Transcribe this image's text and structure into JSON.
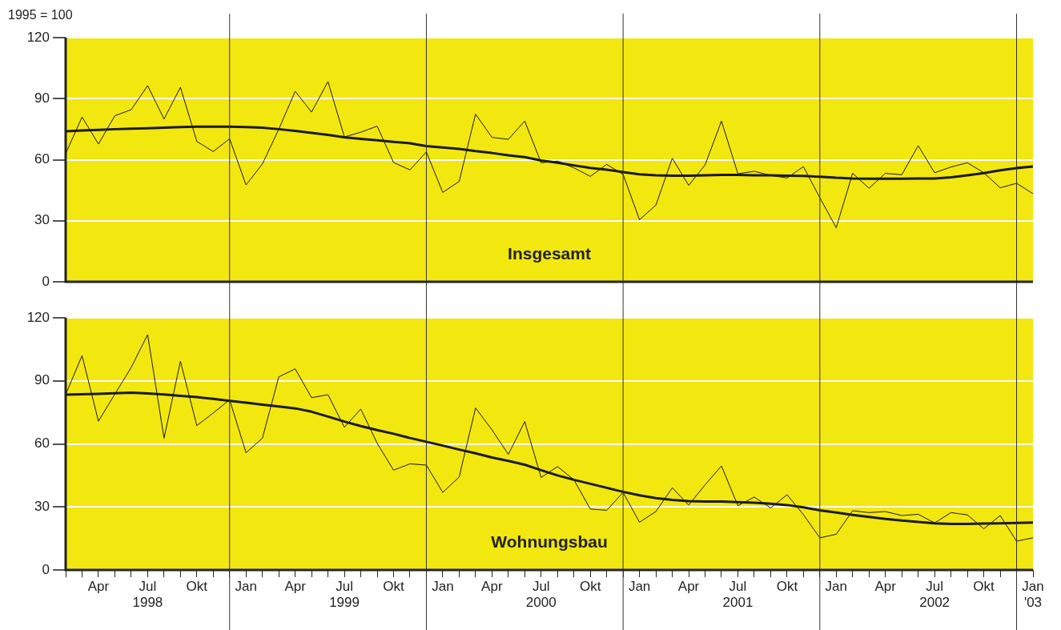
{
  "chart_data": [
    {
      "type": "line",
      "ylabel": "1995 = 100",
      "annotations": [
        "Insgesamt"
      ],
      "marker": "none",
      "grid": "y",
      "tick_labels": "y",
      "x": [
        "1998-02",
        "1998-03",
        "1998-04",
        "1998-05",
        "1998-06",
        "1998-07",
        "1998-08",
        "1998-09",
        "1998-10",
        "1998-11",
        "1998-12",
        "1999-01",
        "1999-02",
        "1999-03",
        "1999-04",
        "1999-05",
        "1999-06",
        "1999-07",
        "1999-08",
        "1999-09",
        "1999-10",
        "1999-11",
        "1999-12",
        "2000-01",
        "2000-02",
        "2000-03",
        "2000-04",
        "2000-05",
        "2000-06",
        "2000-07",
        "2000-08",
        "2000-09",
        "2000-10",
        "2000-11",
        "2000-12",
        "2001-01",
        "2001-02",
        "2001-03",
        "2001-04",
        "2001-05",
        "2001-06",
        "2001-07",
        "2001-08",
        "2001-09",
        "2001-10",
        "2001-11",
        "2001-12",
        "2002-01",
        "2002-02",
        "2002-03",
        "2002-04",
        "2002-05",
        "2002-06",
        "2002-07",
        "2002-08",
        "2002-09",
        "2002-10",
        "2002-11",
        "2002-12",
        "2003-01"
      ],
      "xlim": [
        "1998-02",
        "2003-01"
      ],
      "ylim": [
        0,
        120
      ],
      "yticks": [
        0,
        30,
        60,
        90,
        120
      ],
      "ref_lines": [
        {
          "axis": "x",
          "value": "1998-12"
        },
        {
          "axis": "x",
          "value": "1999-12"
        },
        {
          "axis": "x",
          "value": "2000-12"
        },
        {
          "axis": "x",
          "value": "2001-12"
        },
        {
          "axis": "x",
          "value": "2002-12"
        }
      ],
      "series": [
        {
          "color": "#1a1a1a",
          "values": [
            63,
            81,
            67.7,
            81.6,
            84.6,
            96.4,
            80,
            95.6,
            69,
            64,
            70.3,
            47.6,
            57.9,
            75,
            93.6,
            83.4,
            98.4,
            71.2,
            73.5,
            76.5,
            58.6,
            55,
            63.8,
            43.9,
            49.3,
            82.4,
            71,
            70,
            79,
            58.5,
            59.3,
            56,
            51.8,
            57.7,
            52.8,
            30.5,
            37.7,
            60.7,
            47.4,
            57.4,
            79,
            53.1,
            54.3,
            52.3,
            51,
            56.6,
            41.3,
            26.6,
            53.3,
            46,
            53.3,
            52.6,
            66.9,
            53.6,
            56.4,
            58.5,
            53.6,
            46.2,
            48.4,
            43.3
          ]
        },
        {
          "color": "#1a1a1a",
          "values": [
            74,
            74.4,
            74.7,
            75,
            75.2,
            75.4,
            75.7,
            76,
            76.2,
            76.2,
            76.2,
            76,
            75.7,
            75,
            74.2,
            73.2,
            72.2,
            71,
            70.2,
            69.5,
            68.8,
            68.1,
            66.7,
            66,
            65.3,
            64.2,
            63.3,
            62.2,
            61.3,
            59.6,
            58.5,
            57.2,
            56,
            55.1,
            53.9,
            52.8,
            52.3,
            52.1,
            52.1,
            52.3,
            52.5,
            52.5,
            52.3,
            52.3,
            52.1,
            52,
            51.6,
            51.1,
            50.8,
            50.7,
            50.7,
            50.7,
            50.8,
            50.8,
            51.3,
            52.3,
            53.4,
            54.8,
            55.9,
            56.7
          ]
        }
      ]
    },
    {
      "type": "line",
      "annotations": [
        "Wohnungsbau"
      ],
      "marker": "none",
      "grid": "y",
      "x": [
        "1998-02",
        "1998-03",
        "1998-04",
        "1998-05",
        "1998-06",
        "1998-07",
        "1998-08",
        "1998-09",
        "1998-10",
        "1998-11",
        "1998-12",
        "1999-01",
        "1999-02",
        "1999-03",
        "1999-04",
        "1999-05",
        "1999-06",
        "1999-07",
        "1999-08",
        "1999-09",
        "1999-10",
        "1999-11",
        "1999-12",
        "2000-01",
        "2000-02",
        "2000-03",
        "2000-04",
        "2000-05",
        "2000-06",
        "2000-07",
        "2000-08",
        "2000-09",
        "2000-10",
        "2000-11",
        "2000-12",
        "2001-01",
        "2001-02",
        "2001-03",
        "2001-04",
        "2001-05",
        "2001-06",
        "2001-07",
        "2001-08",
        "2001-09",
        "2001-10",
        "2001-11",
        "2001-12",
        "2002-01",
        "2002-02",
        "2002-03",
        "2002-04",
        "2002-05",
        "2002-06",
        "2002-07",
        "2002-08",
        "2002-09",
        "2002-10",
        "2002-11",
        "2002-12",
        "2003-01"
      ],
      "xlim": [
        "1998-02",
        "2003-01"
      ],
      "ylim": [
        0,
        120
      ],
      "yticks": [
        0,
        30,
        60,
        90,
        120
      ],
      "xticks": [
        {
          "value": "1998-02",
          "label": null
        },
        {
          "value": "1998-03",
          "label": null
        },
        {
          "value": "1998-04",
          "label": "Apr"
        },
        {
          "value": "1998-05",
          "label": null
        },
        {
          "value": "1998-06",
          "label": null
        },
        {
          "value": "1998-07",
          "label": "Jul\n1998"
        },
        {
          "value": "1998-08",
          "label": null
        },
        {
          "value": "1998-09",
          "label": null
        },
        {
          "value": "1998-10",
          "label": "Okt"
        },
        {
          "value": "1998-11",
          "label": null
        },
        {
          "value": "1998-12",
          "label": null
        },
        {
          "value": "1999-01",
          "label": "Jan"
        },
        {
          "value": "1999-02",
          "label": null
        },
        {
          "value": "1999-03",
          "label": null
        },
        {
          "value": "1999-04",
          "label": "Apr"
        },
        {
          "value": "1999-05",
          "label": null
        },
        {
          "value": "1999-06",
          "label": null
        },
        {
          "value": "1999-07",
          "label": "Jul\n1999"
        },
        {
          "value": "1999-08",
          "label": null
        },
        {
          "value": "1999-09",
          "label": null
        },
        {
          "value": "1999-10",
          "label": "Okt"
        },
        {
          "value": "1999-11",
          "label": null
        },
        {
          "value": "1999-12",
          "label": null
        },
        {
          "value": "2000-01",
          "label": "Jan"
        },
        {
          "value": "2000-02",
          "label": null
        },
        {
          "value": "2000-03",
          "label": null
        },
        {
          "value": "2000-04",
          "label": "Apr"
        },
        {
          "value": "2000-05",
          "label": null
        },
        {
          "value": "2000-06",
          "label": null
        },
        {
          "value": "2000-07",
          "label": "Jul\n2000"
        },
        {
          "value": "2000-08",
          "label": null
        },
        {
          "value": "2000-09",
          "label": null
        },
        {
          "value": "2000-10",
          "label": "Okt"
        },
        {
          "value": "2000-11",
          "label": null
        },
        {
          "value": "2000-12",
          "label": null
        },
        {
          "value": "2001-01",
          "label": "Jan"
        },
        {
          "value": "2001-02",
          "label": null
        },
        {
          "value": "2001-03",
          "label": null
        },
        {
          "value": "2001-04",
          "label": "Apr"
        },
        {
          "value": "2001-05",
          "label": null
        },
        {
          "value": "2001-06",
          "label": null
        },
        {
          "value": "2001-07",
          "label": "Jul\n2001"
        },
        {
          "value": "2001-08",
          "label": null
        },
        {
          "value": "2001-09",
          "label": null
        },
        {
          "value": "2001-10",
          "label": "Okt"
        },
        {
          "value": "2001-11",
          "label": null
        },
        {
          "value": "2001-12",
          "label": null
        },
        {
          "value": "2002-01",
          "label": "Jan"
        },
        {
          "value": "2002-02",
          "label": null
        },
        {
          "value": "2002-03",
          "label": null
        },
        {
          "value": "2002-04",
          "label": "Apr"
        },
        {
          "value": "2002-05",
          "label": null
        },
        {
          "value": "2002-06",
          "label": null
        },
        {
          "value": "2002-07",
          "label": "Jul\n2002"
        },
        {
          "value": "2002-08",
          "label": null
        },
        {
          "value": "2002-09",
          "label": null
        },
        {
          "value": "2002-10",
          "label": "Okt"
        },
        {
          "value": "2002-11",
          "label": null
        },
        {
          "value": "2002-12",
          "label": null
        },
        {
          "value": "2003-01",
          "label": "Jan\n'03"
        }
      ],
      "ref_lines": [
        {
          "axis": "x",
          "value": "1998-12"
        },
        {
          "axis": "x",
          "value": "1999-12"
        },
        {
          "axis": "x",
          "value": "2000-12"
        },
        {
          "axis": "x",
          "value": "2001-12"
        },
        {
          "axis": "x",
          "value": "2002-12"
        }
      ],
      "series": [
        {
          "color": "#1a1a1a",
          "values": [
            83.5,
            102,
            70.8,
            83.7,
            96.4,
            112,
            62.7,
            99.3,
            68.7,
            74.7,
            81,
            55.8,
            62.7,
            91.9,
            95.7,
            82,
            83.4,
            67.9,
            76.6,
            60.3,
            47.5,
            50.5,
            49.9,
            36.9,
            44.2,
            77.1,
            66.7,
            55,
            70.6,
            44,
            49.2,
            42.9,
            29,
            28.4,
            36.9,
            22.7,
            27.8,
            39.1,
            30.9,
            40.5,
            49.5,
            30.6,
            34.7,
            29.5,
            35.8,
            26.3,
            15.3,
            17,
            28.2,
            27.3,
            27.8,
            25.9,
            26.5,
            22.4,
            27.3,
            26.2,
            19.6,
            25.9,
            13.7,
            15.3
          ]
        },
        {
          "color": "#1a1a1a",
          "values": [
            83.4,
            83.6,
            83.8,
            84.1,
            84.4,
            84,
            83.5,
            82.9,
            82.3,
            81.4,
            80.5,
            79.6,
            78.7,
            77.8,
            76.9,
            75.3,
            73,
            70.6,
            68.5,
            66.6,
            64.8,
            62.8,
            61,
            59.2,
            57.3,
            55.5,
            53.5,
            51.9,
            50.1,
            47.5,
            45,
            42.9,
            41,
            39.1,
            37.2,
            35.5,
            34.2,
            33.3,
            32.8,
            32.6,
            32.6,
            32.3,
            32,
            31.5,
            30.9,
            29.8,
            28.4,
            27.3,
            26.2,
            25.2,
            24.3,
            23.5,
            22.9,
            22.2,
            21.9,
            21.9,
            22.1,
            22.2,
            22.4,
            22.6
          ]
        }
      ]
    }
  ]
}
